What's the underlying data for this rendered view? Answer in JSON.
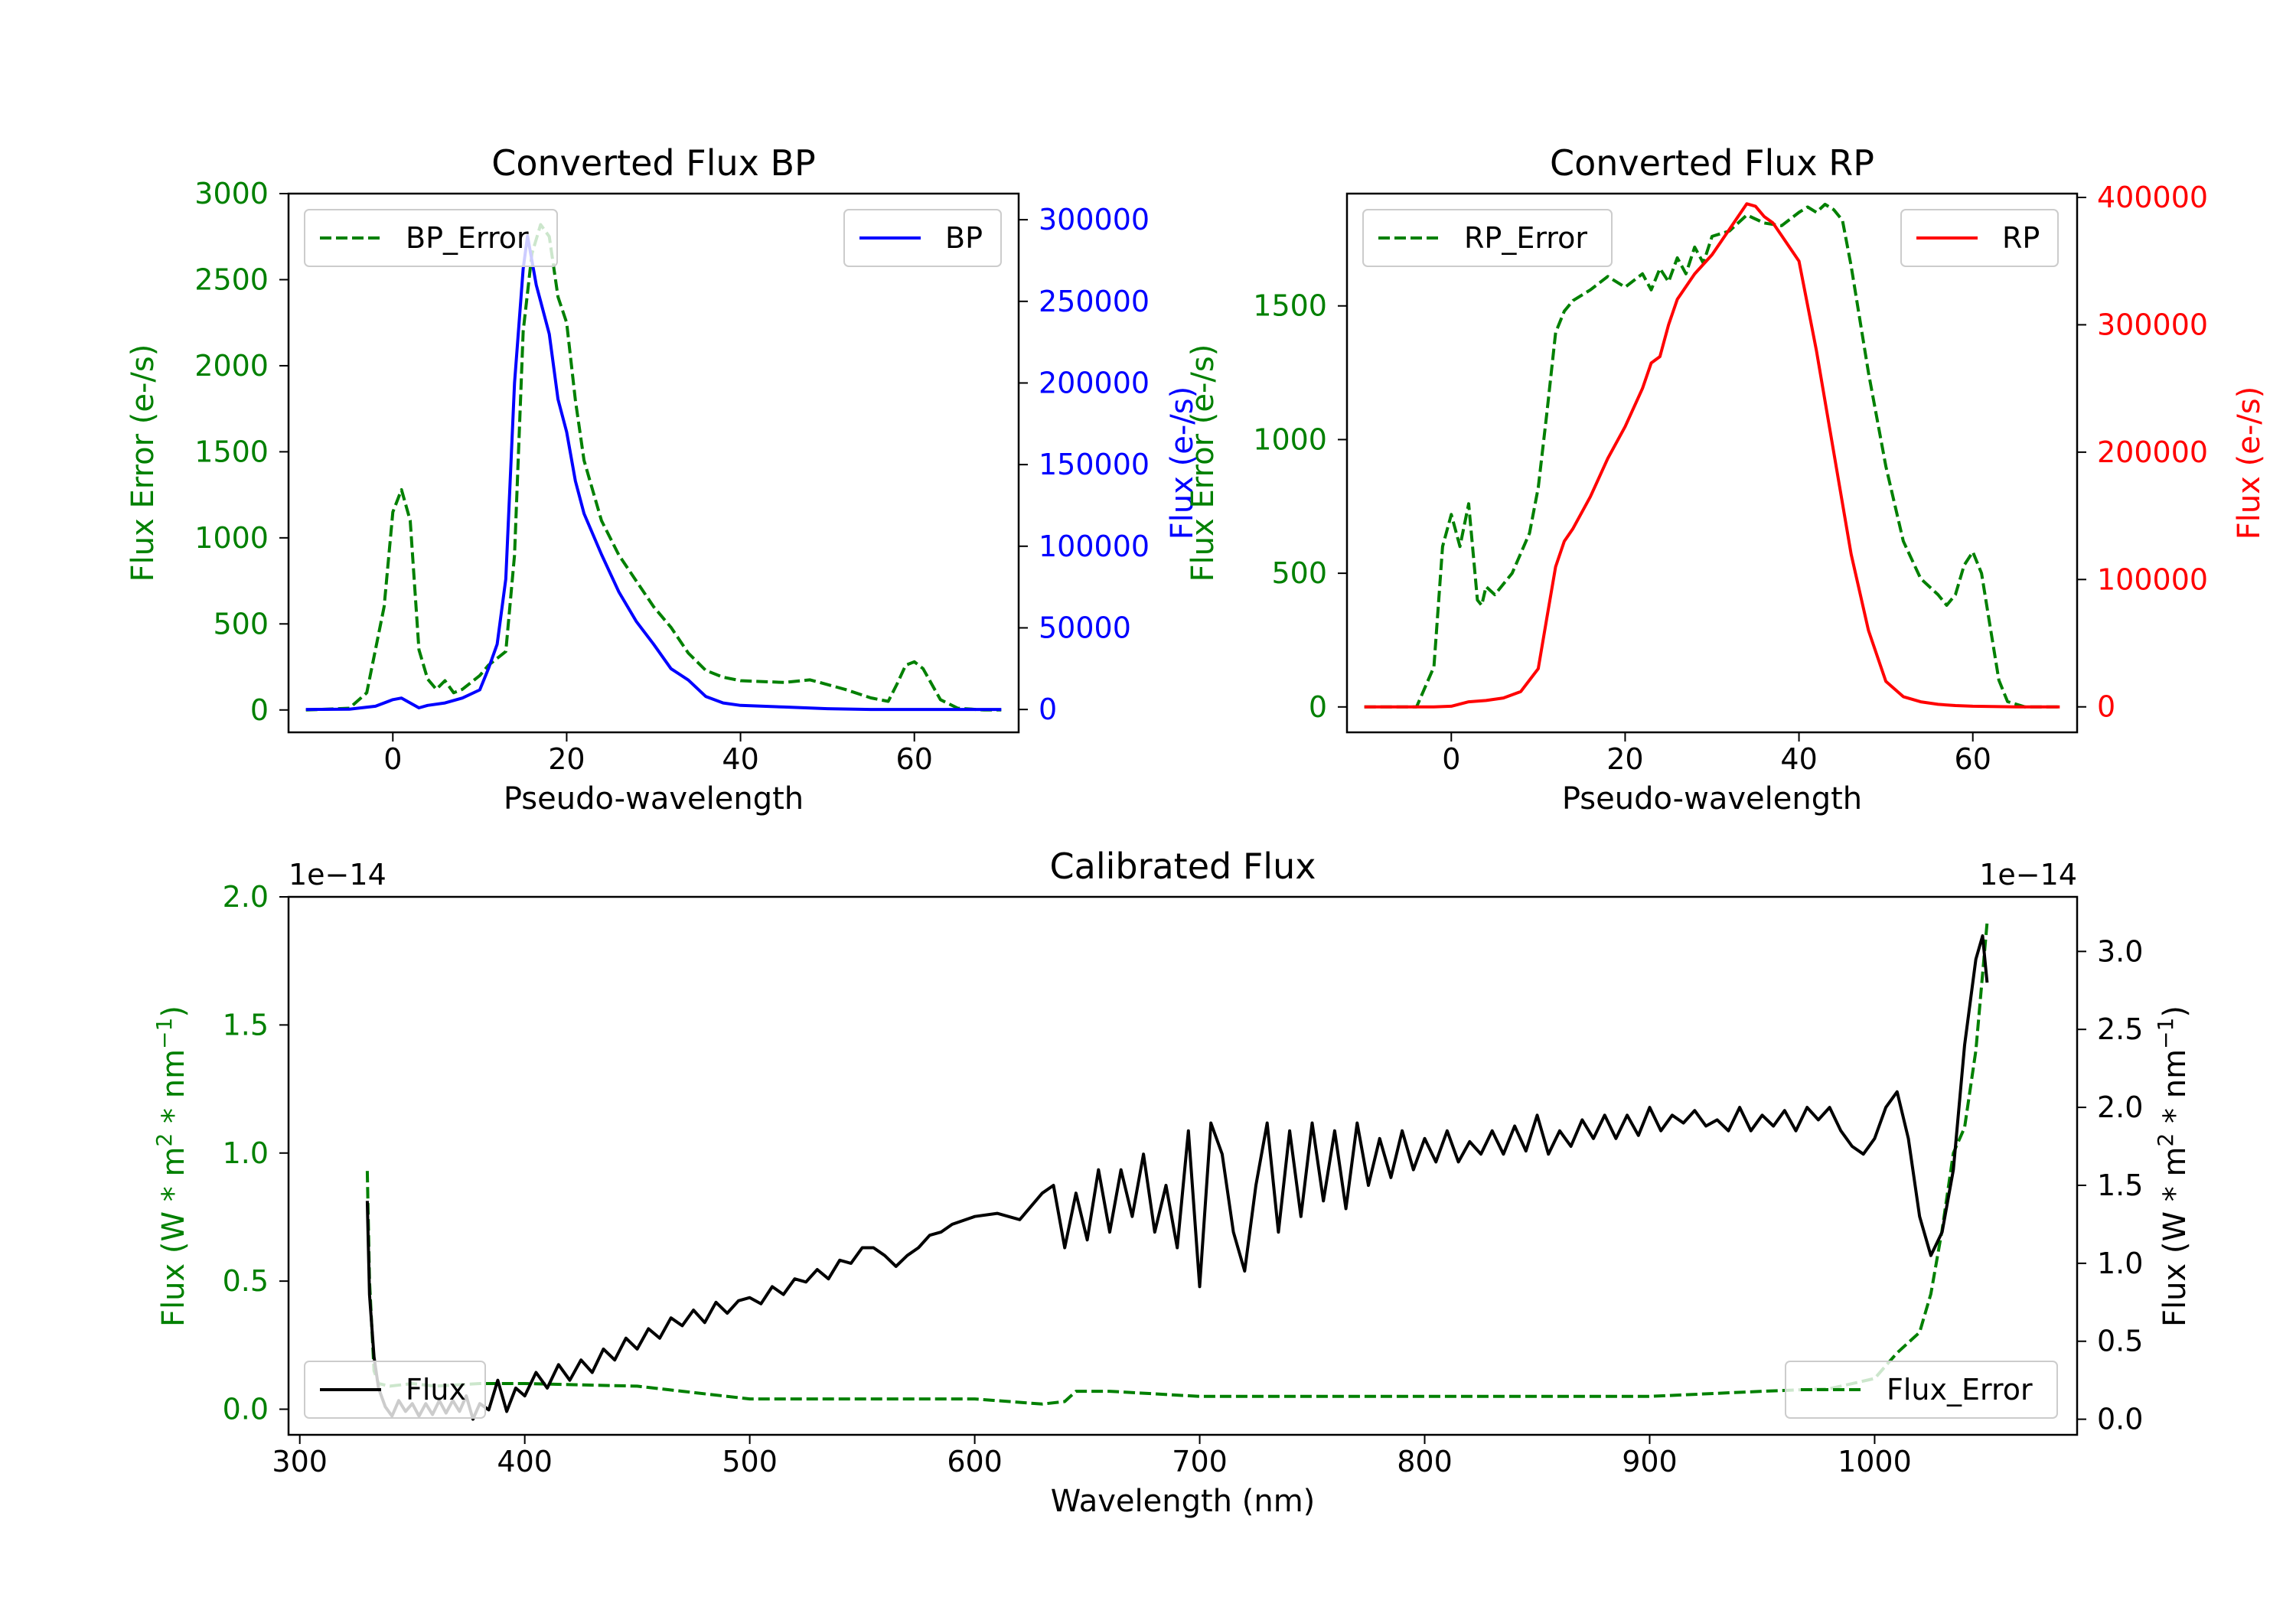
{
  "colors": {
    "bp": "#0000ff",
    "rp": "#ff0000",
    "error": "#008000",
    "flux": "#000000",
    "axis": "#000000"
  },
  "chart_data": [
    {
      "type": "line",
      "title": "Converted Flux BP",
      "xlabel": "Pseudo-wavelength",
      "ylabel": "Flux Error (e-/s)",
      "ylabel_right": "Flux (e-/s)",
      "xlim": [
        -12,
        72
      ],
      "ylim": [
        -130,
        3000
      ],
      "ylim_right": [
        -14000,
        316000
      ],
      "xticks": [
        0,
        20,
        40,
        60
      ],
      "xtick_labels": [
        "0",
        "20",
        "40",
        "60"
      ],
      "yticks": [
        0,
        500,
        1000,
        1500,
        2000,
        2500,
        3000
      ],
      "ytick_labels": [
        "0",
        "500",
        "1000",
        "1500",
        "2000",
        "2500",
        "3000"
      ],
      "yticks_right": [
        0,
        50000,
        100000,
        150000,
        200000,
        250000,
        300000
      ],
      "ytick_labels_right": [
        "0",
        "50000",
        "100000",
        "150000",
        "200000",
        "250000",
        "300000"
      ],
      "legend_left": "BP_Error",
      "legend_right": "BP",
      "series": [
        {
          "name": "BP_Error",
          "axis": "left",
          "style": "dashed",
          "color": "#008000",
          "x": [
            -10,
            -5,
            -3,
            -1,
            0,
            1,
            2,
            3,
            4,
            5,
            6,
            7,
            8,
            9,
            10,
            11,
            12,
            13,
            14,
            15,
            16,
            17,
            18,
            19,
            20,
            21,
            22,
            24,
            26,
            28,
            30,
            32,
            34,
            36,
            38,
            40,
            45,
            48,
            52,
            55,
            57,
            58,
            59,
            60,
            61,
            62,
            63,
            65,
            68,
            70
          ],
          "y": [
            0,
            10,
            100,
            600,
            1150,
            1280,
            1100,
            350,
            180,
            120,
            170,
            100,
            120,
            160,
            200,
            260,
            300,
            340,
            900,
            2200,
            2650,
            2820,
            2750,
            2400,
            2250,
            1800,
            1450,
            1100,
            900,
            750,
            600,
            480,
            330,
            230,
            190,
            170,
            160,
            175,
            120,
            70,
            50,
            150,
            260,
            280,
            240,
            150,
            60,
            10,
            0,
            0
          ]
        },
        {
          "name": "BP",
          "axis": "right",
          "style": "solid",
          "color": "#0000ff",
          "x": [
            -10,
            -5,
            -2,
            0,
            1,
            2,
            3,
            4,
            6,
            8,
            10,
            11,
            12,
            13,
            14,
            15,
            15.5,
            16,
            16.5,
            17,
            18,
            19,
            20,
            21,
            22,
            24,
            26,
            28,
            30,
            32,
            34,
            36,
            38,
            40,
            45,
            50,
            55,
            60,
            65,
            70
          ],
          "y": [
            0,
            200,
            2000,
            6000,
            7000,
            4000,
            1000,
            2500,
            4000,
            7000,
            12000,
            25000,
            40000,
            80000,
            200000,
            270000,
            290000,
            275000,
            260000,
            250000,
            230000,
            190000,
            170000,
            140000,
            120000,
            95000,
            72000,
            54000,
            40000,
            25000,
            18000,
            8000,
            4000,
            2500,
            1500,
            500,
            0,
            0,
            0,
            0
          ]
        }
      ]
    },
    {
      "type": "line",
      "title": "Converted Flux RP",
      "xlabel": "Pseudo-wavelength",
      "ylabel": "Flux Error (e-/s)",
      "ylabel_right": "Flux (e-/s)",
      "xlim": [
        -12,
        72
      ],
      "ylim": [
        -95,
        1920
      ],
      "ylim_right": [
        -20000,
        403000
      ],
      "xticks": [
        0,
        20,
        40,
        60
      ],
      "xtick_labels": [
        "0",
        "20",
        "40",
        "60"
      ],
      "yticks": [
        0,
        500,
        1000,
        1500
      ],
      "ytick_labels": [
        "0",
        "500",
        "1000",
        "1500"
      ],
      "yticks_right": [
        0,
        100000,
        200000,
        300000,
        400000
      ],
      "ytick_labels_right": [
        "0",
        "100000",
        "200000",
        "300000",
        "400000"
      ],
      "legend_left": "RP_Error",
      "legend_right": "RP",
      "series": [
        {
          "name": "RP_Error",
          "axis": "left",
          "style": "dashed",
          "color": "#008000",
          "x": [
            -10,
            -4,
            -2,
            -1,
            0,
            1,
            2,
            3,
            3.5,
            4,
            5,
            7,
            9,
            10,
            11,
            12,
            13,
            14,
            16,
            18,
            20,
            22,
            23,
            24,
            25,
            26,
            27,
            28,
            29,
            30,
            32,
            34,
            36,
            38,
            40,
            41,
            42,
            43,
            44,
            45,
            46,
            48,
            50,
            52,
            54,
            56,
            57,
            58,
            59,
            60,
            61,
            62,
            63,
            64,
            66,
            70
          ],
          "y": [
            0,
            0,
            150,
            600,
            720,
            600,
            760,
            400,
            380,
            450,
            420,
            500,
            650,
            820,
            1100,
            1400,
            1480,
            1520,
            1560,
            1610,
            1570,
            1620,
            1560,
            1640,
            1590,
            1680,
            1620,
            1720,
            1660,
            1760,
            1780,
            1840,
            1810,
            1800,
            1850,
            1870,
            1850,
            1880,
            1860,
            1820,
            1650,
            1250,
            900,
            620,
            480,
            420,
            380,
            420,
            530,
            580,
            500,
            300,
            100,
            20,
            0,
            0
          ]
        },
        {
          "name": "RP",
          "axis": "right",
          "style": "solid",
          "color": "#ff0000",
          "x": [
            -10,
            -2,
            0,
            2,
            4,
            6,
            8,
            10,
            11,
            12,
            13,
            14,
            16,
            18,
            20,
            22,
            23,
            24,
            25,
            26,
            28,
            30,
            32,
            34,
            35,
            36,
            37,
            38,
            40,
            42,
            44,
            46,
            48,
            50,
            52,
            54,
            56,
            58,
            60,
            65,
            70
          ],
          "y": [
            0,
            0,
            500,
            4000,
            5000,
            7000,
            12000,
            30000,
            70000,
            110000,
            130000,
            140000,
            165000,
            195000,
            220000,
            250000,
            270000,
            275000,
            300000,
            320000,
            340000,
            355000,
            375000,
            395000,
            393000,
            385000,
            380000,
            370000,
            350000,
            280000,
            200000,
            120000,
            60000,
            20000,
            8000,
            4000,
            2000,
            1000,
            500,
            0,
            0
          ]
        }
      ]
    },
    {
      "type": "line",
      "title": "Calibrated Flux",
      "xlabel": "Wavelength (nm)",
      "ylabel": "Flux (W * m$^2$ * nm$^{-1}$)",
      "ylabel_right": "Flux (W * m$^2$ * nm$^{-1}$)",
      "offset_left": "1e−14",
      "offset_right": "1e−14",
      "xlim": [
        295,
        1090
      ],
      "ylim": [
        -0.1,
        2.0
      ],
      "ylim_right": [
        -0.1,
        3.35
      ],
      "xticks": [
        300,
        400,
        500,
        600,
        700,
        800,
        900,
        1000
      ],
      "xtick_labels": [
        "300",
        "400",
        "500",
        "600",
        "700",
        "800",
        "900",
        "1000"
      ],
      "yticks": [
        0.0,
        0.5,
        1.0,
        1.5,
        2.0
      ],
      "ytick_labels": [
        "0.0",
        "0.5",
        "1.0",
        "1.5",
        "2.0"
      ],
      "yticks_right": [
        0.0,
        0.5,
        1.0,
        1.5,
        2.0,
        2.5,
        3.0
      ],
      "ytick_labels_right": [
        "0.0",
        "0.5",
        "1.0",
        "1.5",
        "2.0",
        "2.5",
        "3.0"
      ],
      "legend_left": "Flux",
      "legend_right": "Flux_Error",
      "series": [
        {
          "name": "Flux_Error",
          "axis": "left",
          "style": "dashed",
          "color": "#008000",
          "x": [
            330,
            331,
            333,
            335,
            340,
            350,
            360,
            380,
            400,
            450,
            500,
            550,
            600,
            630,
            640,
            645,
            660,
            700,
            800,
            900,
            950,
            980,
            1000,
            1010,
            1020,
            1025,
            1030,
            1035,
            1040,
            1045,
            1050
          ],
          "y": [
            0.93,
            0.5,
            0.15,
            0.1,
            0.09,
            0.1,
            0.09,
            0.1,
            0.1,
            0.09,
            0.04,
            0.04,
            0.04,
            0.02,
            0.03,
            0.07,
            0.07,
            0.05,
            0.05,
            0.05,
            0.07,
            0.08,
            0.12,
            0.22,
            0.3,
            0.45,
            0.7,
            1.0,
            1.1,
            1.4,
            1.9
          ]
        },
        {
          "name": "Flux",
          "axis": "right",
          "style": "solid",
          "color": "#000000",
          "x": [
            330,
            331,
            333,
            335,
            338,
            341,
            344,
            347,
            350,
            353,
            356,
            359,
            362,
            365,
            368,
            371,
            374,
            377,
            380,
            384,
            388,
            392,
            396,
            400,
            405,
            410,
            415,
            420,
            425,
            430,
            435,
            440,
            445,
            450,
            455,
            460,
            465,
            470,
            475,
            480,
            485,
            490,
            495,
            500,
            505,
            510,
            515,
            520,
            525,
            530,
            535,
            540,
            545,
            550,
            555,
            560,
            565,
            570,
            575,
            580,
            585,
            590,
            600,
            610,
            620,
            630,
            635,
            640,
            645,
            650,
            655,
            660,
            665,
            670,
            675,
            680,
            685,
            690,
            695,
            700,
            705,
            710,
            715,
            720,
            725,
            730,
            735,
            740,
            745,
            750,
            755,
            760,
            765,
            770,
            775,
            780,
            785,
            790,
            795,
            800,
            805,
            810,
            815,
            820,
            825,
            830,
            835,
            840,
            845,
            850,
            855,
            860,
            865,
            870,
            875,
            880,
            885,
            890,
            895,
            900,
            905,
            910,
            915,
            920,
            925,
            930,
            935,
            940,
            945,
            950,
            955,
            960,
            965,
            970,
            975,
            980,
            985,
            990,
            995,
            1000,
            1005,
            1010,
            1015,
            1020,
            1025,
            1030,
            1035,
            1040,
            1045,
            1048,
            1050
          ],
          "y": [
            1.4,
            0.8,
            0.4,
            0.2,
            0.08,
            0.02,
            0.12,
            0.05,
            0.1,
            0.02,
            0.1,
            0.03,
            0.12,
            0.04,
            0.12,
            0.05,
            0.15,
            0.0,
            0.1,
            0.06,
            0.25,
            0.05,
            0.2,
            0.15,
            0.3,
            0.2,
            0.35,
            0.25,
            0.38,
            0.3,
            0.45,
            0.38,
            0.52,
            0.45,
            0.58,
            0.52,
            0.65,
            0.6,
            0.7,
            0.62,
            0.75,
            0.68,
            0.76,
            0.78,
            0.74,
            0.85,
            0.8,
            0.9,
            0.88,
            0.96,
            0.9,
            1.02,
            1.0,
            1.1,
            1.1,
            1.05,
            0.98,
            1.05,
            1.1,
            1.18,
            1.2,
            1.25,
            1.3,
            1.32,
            1.28,
            1.45,
            1.5,
            1.1,
            1.45,
            1.15,
            1.6,
            1.2,
            1.6,
            1.3,
            1.7,
            1.2,
            1.5,
            1.1,
            1.85,
            0.85,
            1.9,
            1.7,
            1.2,
            0.95,
            1.5,
            1.9,
            1.2,
            1.85,
            1.3,
            1.9,
            1.4,
            1.85,
            1.35,
            1.9,
            1.5,
            1.8,
            1.55,
            1.85,
            1.6,
            1.8,
            1.65,
            1.85,
            1.65,
            1.78,
            1.7,
            1.85,
            1.7,
            1.88,
            1.72,
            1.95,
            1.7,
            1.85,
            1.75,
            1.92,
            1.8,
            1.95,
            1.8,
            1.95,
            1.82,
            2.0,
            1.85,
            1.95,
            1.9,
            1.98,
            1.88,
            1.92,
            1.85,
            2.0,
            1.85,
            1.95,
            1.88,
            1.98,
            1.85,
            2.0,
            1.92,
            2.0,
            1.85,
            1.75,
            1.7,
            1.8,
            2.0,
            2.1,
            1.8,
            1.3,
            1.05,
            1.2,
            1.6,
            2.4,
            2.95,
            3.1,
            2.8
          ]
        }
      ]
    }
  ]
}
